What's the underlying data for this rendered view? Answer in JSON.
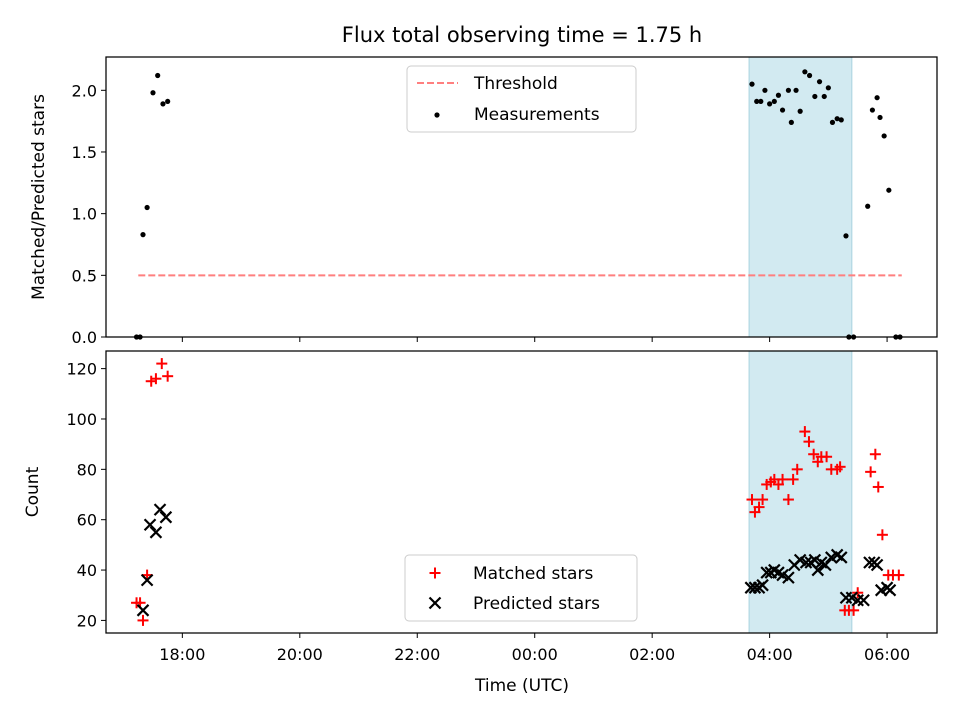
{
  "chart_data": {
    "type": "scatter",
    "title": "Flux total observing time = 1.75 h",
    "xlabel": "Time (UTC)",
    "xlim_hours": [
      16.7,
      30.85
    ],
    "x_ticks": [
      {
        "value": 18,
        "label": "18:00"
      },
      {
        "value": 20,
        "label": "20:00"
      },
      {
        "value": 22,
        "label": "22:00"
      },
      {
        "value": 24,
        "label": "00:00"
      },
      {
        "value": 26,
        "label": "02:00"
      },
      {
        "value": 28,
        "label": "04:00"
      },
      {
        "value": 30,
        "label": "06:00"
      }
    ],
    "highlight_span_hours": [
      27.65,
      29.4
    ],
    "top": {
      "ylabel": "Matched/Predicted stars",
      "ylim": [
        0,
        2.27
      ],
      "y_ticks": [
        "0.0",
        "0.5",
        "1.0",
        "1.5",
        "2.0"
      ],
      "y_tick_values": [
        0,
        0.5,
        1.0,
        1.5,
        2.0
      ],
      "threshold": {
        "label": "Threshold",
        "value": 0.5,
        "x_range": [
          17.25,
          30.25
        ],
        "color": "#ff7f7f"
      },
      "measurements_label": "Measurements",
      "measurements": [
        [
          17.22,
          0.0
        ],
        [
          17.28,
          0.0
        ],
        [
          17.33,
          0.83
        ],
        [
          17.4,
          1.05
        ],
        [
          17.5,
          1.98
        ],
        [
          17.58,
          2.12
        ],
        [
          17.67,
          1.89
        ],
        [
          17.75,
          1.91
        ],
        [
          27.7,
          2.05
        ],
        [
          27.78,
          1.91
        ],
        [
          27.85,
          1.91
        ],
        [
          27.92,
          2.0
        ],
        [
          28.0,
          1.89
        ],
        [
          28.08,
          1.91
        ],
        [
          28.15,
          1.96
        ],
        [
          28.22,
          1.84
        ],
        [
          28.32,
          2.0
        ],
        [
          28.37,
          1.74
        ],
        [
          28.45,
          2.0
        ],
        [
          28.52,
          1.83
        ],
        [
          28.6,
          2.15
        ],
        [
          28.68,
          2.12
        ],
        [
          28.77,
          1.95
        ],
        [
          28.85,
          2.07
        ],
        [
          28.93,
          1.95
        ],
        [
          29.0,
          2.02
        ],
        [
          29.07,
          1.74
        ],
        [
          29.15,
          1.77
        ],
        [
          29.22,
          1.76
        ],
        [
          29.3,
          0.82
        ],
        [
          29.35,
          0.0
        ],
        [
          29.43,
          0.0
        ],
        [
          29.67,
          1.06
        ],
        [
          29.75,
          1.84
        ],
        [
          29.83,
          1.94
        ],
        [
          29.88,
          1.78
        ],
        [
          29.95,
          1.63
        ],
        [
          30.03,
          1.19
        ],
        [
          30.15,
          0.0
        ],
        [
          30.22,
          0.0
        ]
      ]
    },
    "bottom": {
      "ylabel": "Count",
      "ylim": [
        15,
        127
      ],
      "y_ticks": [
        "20",
        "40",
        "60",
        "80",
        "100",
        "120"
      ],
      "y_tick_values": [
        20,
        40,
        60,
        80,
        100,
        120
      ],
      "series": [
        {
          "name": "Matched stars",
          "marker": "plus",
          "color": "#ff0000",
          "points": [
            [
              17.22,
              27
            ],
            [
              17.28,
              27
            ],
            [
              17.33,
              20
            ],
            [
              17.4,
              38
            ],
            [
              17.47,
              115
            ],
            [
              17.55,
              116
            ],
            [
              17.65,
              122
            ],
            [
              17.75,
              117
            ],
            [
              27.7,
              68
            ],
            [
              27.75,
              63
            ],
            [
              27.82,
              65
            ],
            [
              27.88,
              68
            ],
            [
              27.95,
              74
            ],
            [
              28.02,
              75
            ],
            [
              28.08,
              76
            ],
            [
              28.15,
              74
            ],
            [
              28.22,
              76
            ],
            [
              28.32,
              68
            ],
            [
              28.4,
              76
            ],
            [
              28.47,
              80
            ],
            [
              28.6,
              95
            ],
            [
              28.67,
              91
            ],
            [
              28.75,
              86
            ],
            [
              28.82,
              83
            ],
            [
              28.88,
              85
            ],
            [
              28.97,
              85
            ],
            [
              29.05,
              80
            ],
            [
              29.15,
              80
            ],
            [
              29.2,
              81
            ],
            [
              29.28,
              24
            ],
            [
              29.35,
              24
            ],
            [
              29.43,
              24
            ],
            [
              29.5,
              31
            ],
            [
              29.72,
              79
            ],
            [
              29.8,
              86
            ],
            [
              29.85,
              73
            ],
            [
              29.92,
              54
            ],
            [
              30.02,
              38
            ],
            [
              30.1,
              38
            ],
            [
              30.2,
              38
            ]
          ]
        },
        {
          "name": "Predicted stars",
          "marker": "x",
          "color": "#000000",
          "points": [
            [
              17.33,
              24
            ],
            [
              17.4,
              36
            ],
            [
              17.45,
              58
            ],
            [
              17.55,
              55
            ],
            [
              17.62,
              64
            ],
            [
              17.72,
              61
            ],
            [
              27.68,
              33
            ],
            [
              27.75,
              33
            ],
            [
              27.82,
              33
            ],
            [
              27.88,
              34
            ],
            [
              27.95,
              39
            ],
            [
              28.02,
              39
            ],
            [
              28.08,
              40
            ],
            [
              28.15,
              39
            ],
            [
              28.22,
              38
            ],
            [
              28.32,
              37
            ],
            [
              28.42,
              42
            ],
            [
              28.52,
              44
            ],
            [
              28.62,
              43
            ],
            [
              28.7,
              43
            ],
            [
              28.77,
              44
            ],
            [
              28.82,
              40
            ],
            [
              28.88,
              43
            ],
            [
              28.95,
              42
            ],
            [
              29.05,
              45
            ],
            [
              29.15,
              46
            ],
            [
              29.22,
              45
            ],
            [
              29.3,
              29
            ],
            [
              29.4,
              29
            ],
            [
              29.5,
              28
            ],
            [
              29.6,
              28
            ],
            [
              29.7,
              43
            ],
            [
              29.78,
              43
            ],
            [
              29.83,
              42
            ],
            [
              29.9,
              32
            ],
            [
              30.0,
              33
            ],
            [
              30.05,
              32
            ]
          ]
        }
      ]
    }
  }
}
